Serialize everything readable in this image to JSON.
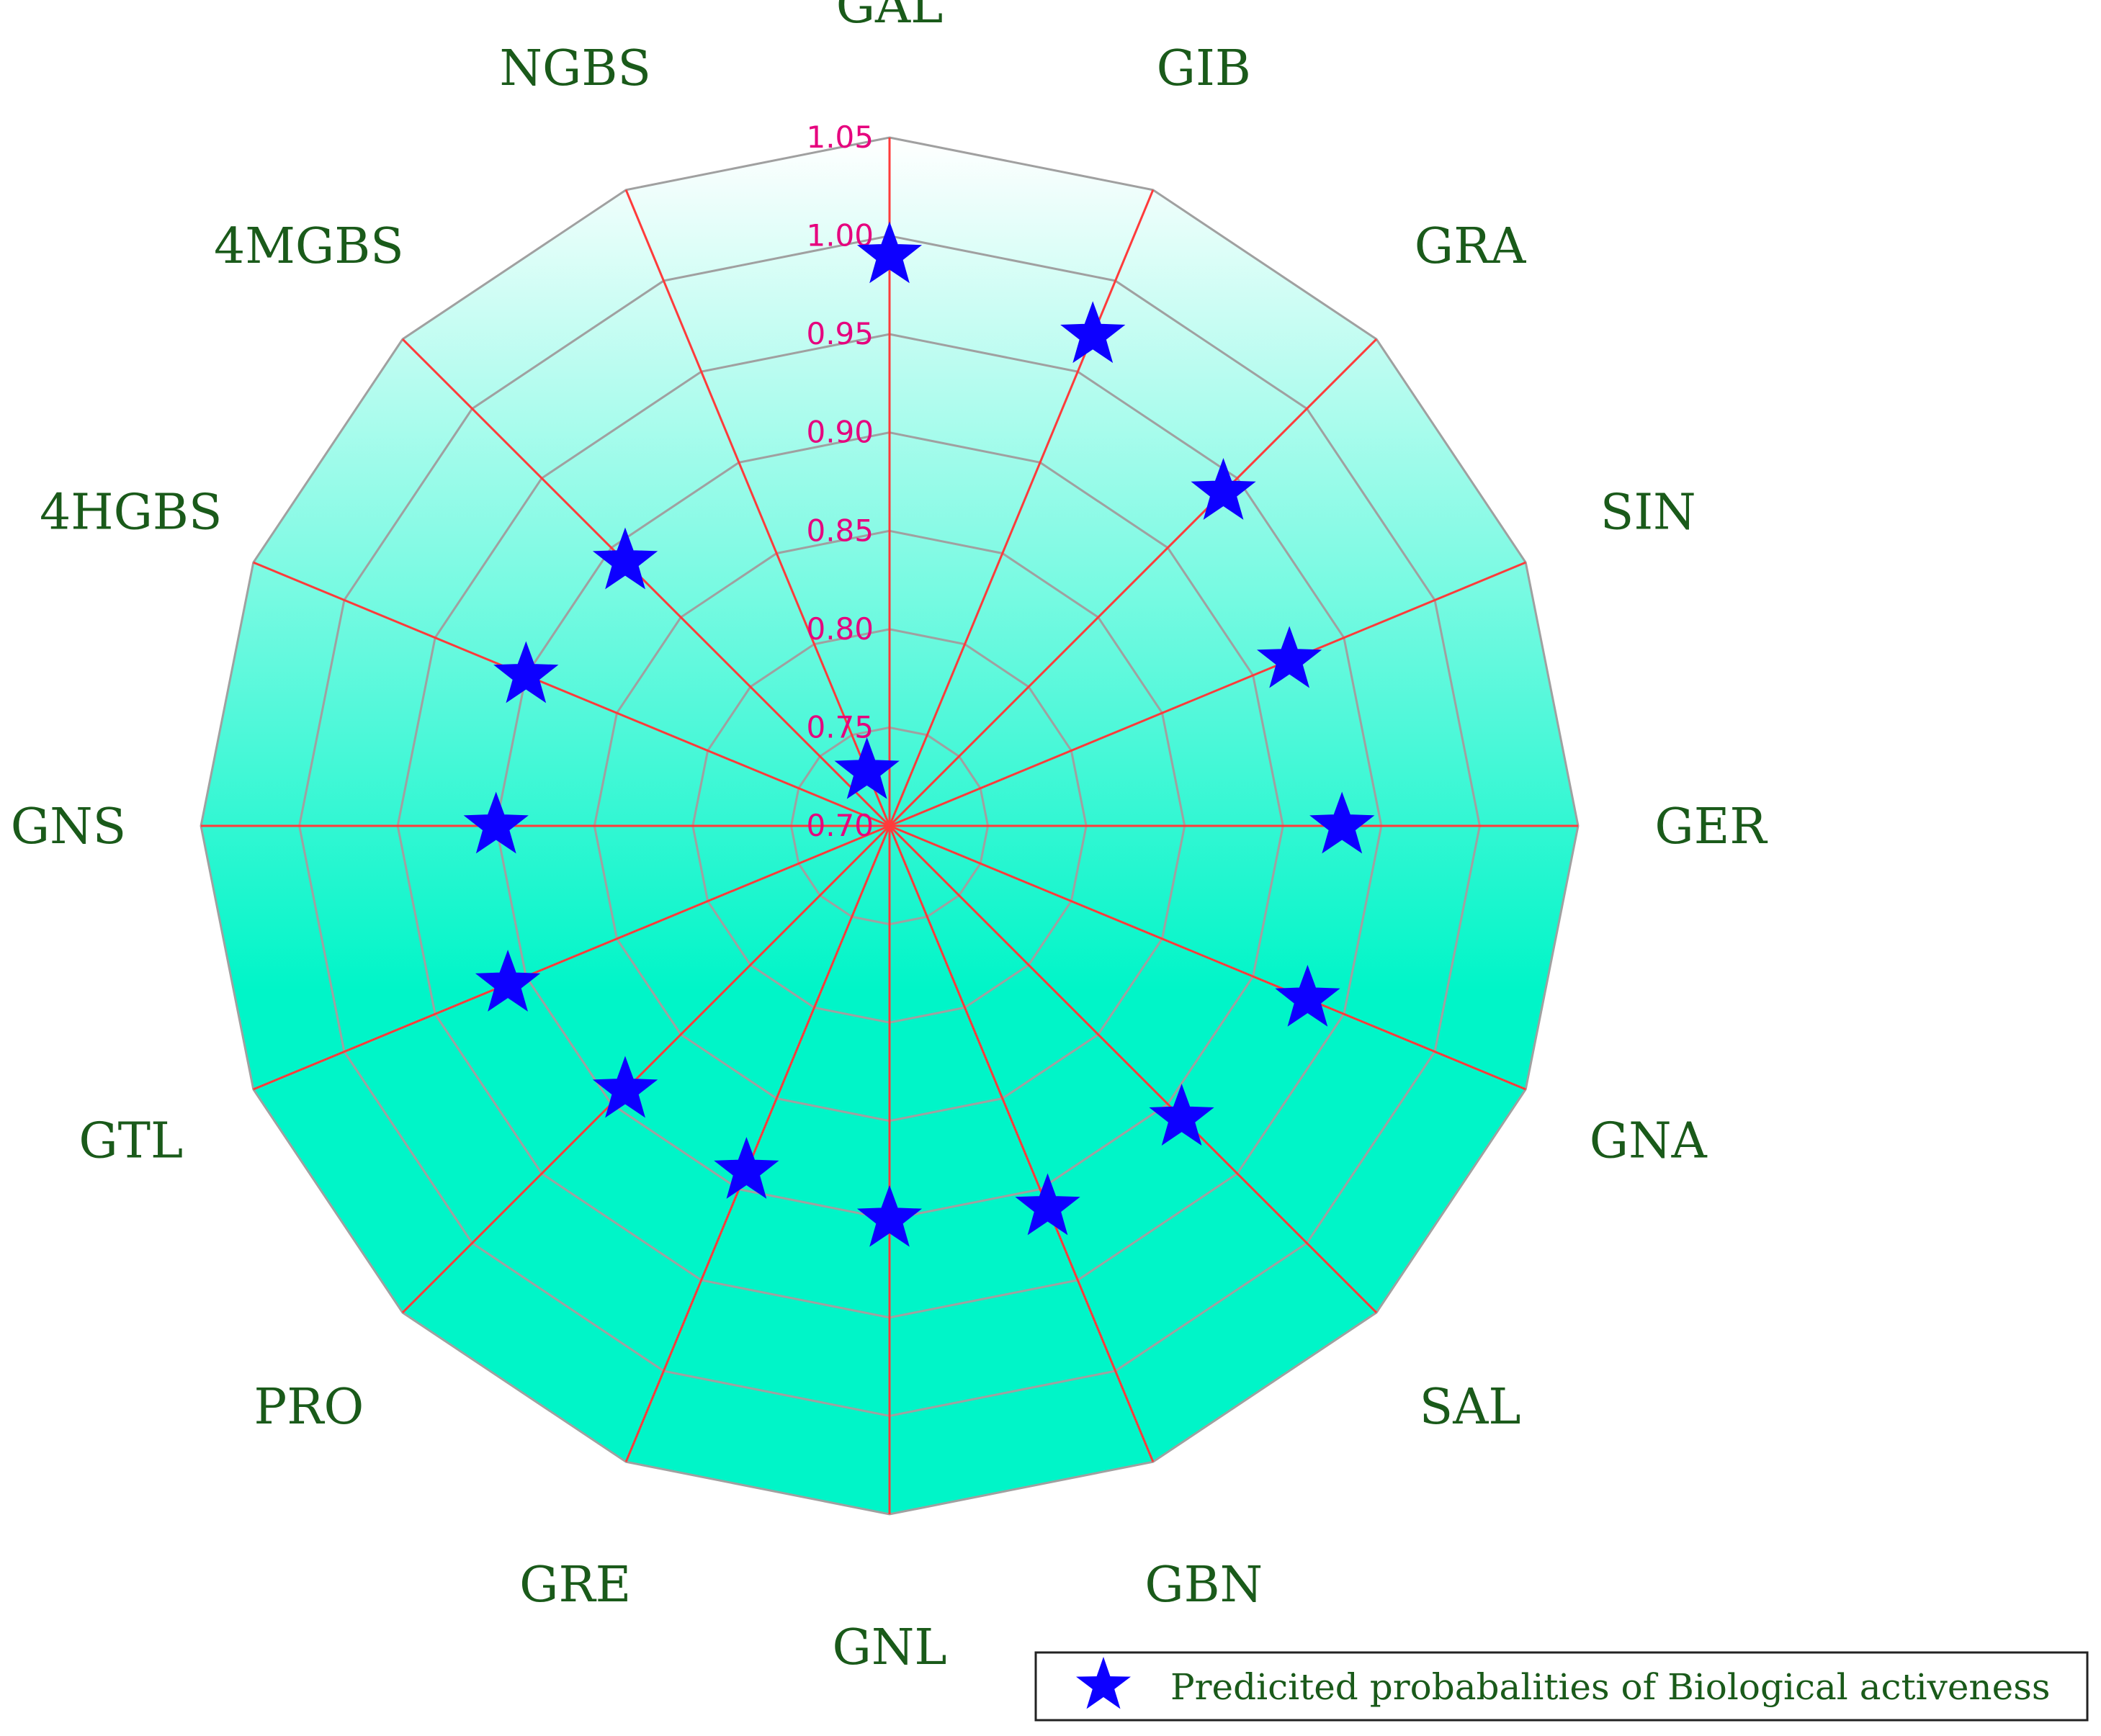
{
  "chart_data": {
    "type": "radar",
    "title": "",
    "categories": [
      "GAL",
      "GIB",
      "GRA",
      "SIN",
      "GER",
      "GNA",
      "SAL",
      "GBN",
      "GNL",
      "GRE",
      "PRO",
      "GTL",
      "GNS",
      "4HGBS",
      "4MGBS",
      "NGBS"
    ],
    "series": [
      {
        "name": "Predicited probabalities of Biological activeness",
        "values": [
          0.99,
          0.97,
          0.94,
          0.92,
          0.93,
          0.93,
          0.91,
          0.91,
          0.9,
          0.89,
          0.89,
          0.91,
          0.9,
          0.9,
          0.89,
          0.73
        ]
      }
    ],
    "r_range": [
      0.7,
      1.05
    ],
    "r_ticks": [
      "0.70",
      "0.75",
      "0.80",
      "0.85",
      "0.90",
      "0.95",
      "1.00",
      "1.05"
    ],
    "legend_position": "bottom-right",
    "grid": true,
    "colors": {
      "axis_lines": "#ff3b3b",
      "ring_lines": "#a0a0a0",
      "tick_labels": "#e6007e",
      "category_labels": "#1a5a1a",
      "marker": "#0d00ff",
      "fill_top": "#ffffff",
      "fill_bottom": "#00f5c8"
    }
  }
}
